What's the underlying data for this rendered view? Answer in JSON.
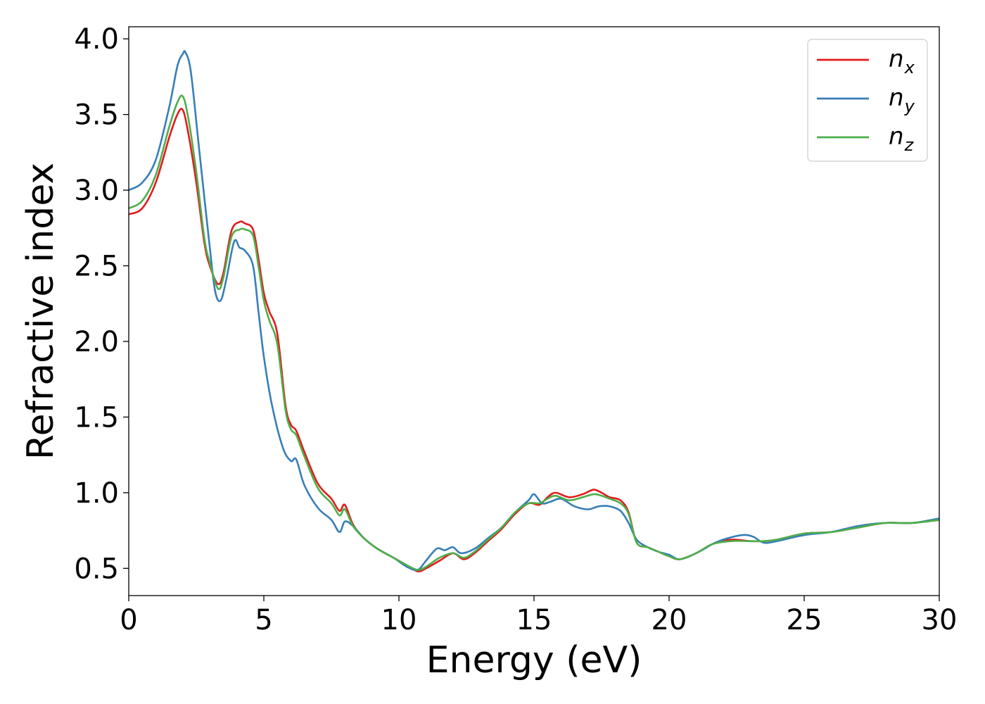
{
  "chart_data": {
    "type": "line",
    "title": "",
    "xlabel": "Energy (eV)",
    "ylabel": "Refractive index",
    "xlim": [
      0,
      30
    ],
    "ylim": [
      0.32,
      4.08
    ],
    "xticks": [
      "0",
      "5",
      "10",
      "15",
      "20",
      "25",
      "30"
    ],
    "yticks": [
      "0.5",
      "1.0",
      "1.5",
      "2.0",
      "2.5",
      "3.0",
      "3.5",
      "4.0"
    ],
    "grid": false,
    "legend_position": "top-right",
    "series": [
      {
        "name": "n_x",
        "label_main": "n",
        "label_sub": "x",
        "color": "#e41a1c",
        "x": [
          0,
          0.5,
          1.0,
          1.5,
          1.8,
          2.0,
          2.2,
          2.5,
          2.8,
          3.0,
          3.3,
          3.5,
          3.8,
          4.1,
          4.3,
          4.6,
          4.8,
          5.0,
          5.2,
          5.5,
          5.8,
          6.0,
          6.2,
          6.5,
          7.0,
          7.5,
          7.8,
          8.0,
          8.3,
          8.7,
          9.2,
          9.8,
          10.3,
          10.7,
          11.0,
          11.5,
          12.0,
          12.4,
          12.8,
          13.3,
          13.8,
          14.3,
          14.8,
          15.2,
          15.5,
          15.8,
          16.3,
          16.8,
          17.2,
          17.5,
          17.8,
          18.2,
          18.5,
          18.8,
          19.2,
          19.6,
          20.0,
          20.4,
          21.0,
          21.6,
          22.3,
          23.0,
          23.5,
          24.0,
          25.0,
          26.0,
          27.0,
          28.0,
          29.0,
          30.0
        ],
        "values": [
          2.84,
          2.88,
          3.05,
          3.35,
          3.5,
          3.53,
          3.38,
          3.05,
          2.65,
          2.5,
          2.38,
          2.45,
          2.73,
          2.79,
          2.78,
          2.74,
          2.55,
          2.32,
          2.2,
          2.05,
          1.58,
          1.45,
          1.41,
          1.27,
          1.06,
          0.96,
          0.88,
          0.92,
          0.79,
          0.7,
          0.63,
          0.57,
          0.52,
          0.48,
          0.5,
          0.55,
          0.6,
          0.56,
          0.6,
          0.68,
          0.76,
          0.86,
          0.93,
          0.92,
          0.97,
          1.0,
          0.97,
          0.99,
          1.02,
          1.0,
          0.97,
          0.95,
          0.87,
          0.67,
          0.64,
          0.61,
          0.58,
          0.56,
          0.6,
          0.66,
          0.69,
          0.68,
          0.68,
          0.69,
          0.73,
          0.74,
          0.77,
          0.8,
          0.8,
          0.82
        ]
      },
      {
        "name": "n_y",
        "label_main": "n",
        "label_sub": "y",
        "color": "#377eb8",
        "x": [
          0,
          0.5,
          1.0,
          1.5,
          1.8,
          2.0,
          2.1,
          2.3,
          2.6,
          3.0,
          3.2,
          3.4,
          3.6,
          3.9,
          4.1,
          4.3,
          4.6,
          4.8,
          5.0,
          5.3,
          5.7,
          6.0,
          6.2,
          6.5,
          7.0,
          7.5,
          7.8,
          8.0,
          8.3,
          8.7,
          9.2,
          9.8,
          10.3,
          10.7,
          11.0,
          11.4,
          11.7,
          12.0,
          12.3,
          12.8,
          13.3,
          13.8,
          14.3,
          14.8,
          15.0,
          15.3,
          15.6,
          16.0,
          16.5,
          17.0,
          17.4,
          17.8,
          18.2,
          18.5,
          18.8,
          19.2,
          19.6,
          20.0,
          20.4,
          21.0,
          21.6,
          22.0,
          22.7,
          23.1,
          23.5,
          24.0,
          25.0,
          26.0,
          27.0,
          28.0,
          29.0,
          30.0
        ],
        "values": [
          3.0,
          3.05,
          3.2,
          3.55,
          3.82,
          3.9,
          3.91,
          3.78,
          3.28,
          2.62,
          2.33,
          2.27,
          2.4,
          2.66,
          2.62,
          2.6,
          2.5,
          2.2,
          1.9,
          1.58,
          1.3,
          1.21,
          1.22,
          1.05,
          0.9,
          0.82,
          0.74,
          0.81,
          0.78,
          0.7,
          0.63,
          0.57,
          0.51,
          0.49,
          0.55,
          0.63,
          0.62,
          0.64,
          0.6,
          0.63,
          0.7,
          0.77,
          0.87,
          0.95,
          0.99,
          0.93,
          0.94,
          0.96,
          0.91,
          0.89,
          0.91,
          0.91,
          0.88,
          0.8,
          0.69,
          0.64,
          0.61,
          0.59,
          0.56,
          0.6,
          0.66,
          0.69,
          0.72,
          0.71,
          0.67,
          0.68,
          0.72,
          0.74,
          0.78,
          0.8,
          0.8,
          0.83
        ]
      },
      {
        "name": "n_z",
        "label_main": "n",
        "label_sub": "z",
        "color": "#4daf4a",
        "x": [
          0,
          0.5,
          1.0,
          1.5,
          1.8,
          2.0,
          2.2,
          2.5,
          2.8,
          3.0,
          3.3,
          3.5,
          3.8,
          4.1,
          4.3,
          4.6,
          4.8,
          5.0,
          5.2,
          5.5,
          5.8,
          6.0,
          6.2,
          6.5,
          7.0,
          7.5,
          7.8,
          8.0,
          8.3,
          8.7,
          9.2,
          9.8,
          10.3,
          10.7,
          11.0,
          11.5,
          12.0,
          12.4,
          12.8,
          13.3,
          13.8,
          14.3,
          14.8,
          15.2,
          15.5,
          15.8,
          16.3,
          16.8,
          17.2,
          17.5,
          17.8,
          18.2,
          18.5,
          18.8,
          19.2,
          19.6,
          20.0,
          20.4,
          21.0,
          21.6,
          22.3,
          23.0,
          23.5,
          24.0,
          25.0,
          26.0,
          27.0,
          28.0,
          29.0,
          30.0
        ],
        "values": [
          2.88,
          2.93,
          3.1,
          3.42,
          3.58,
          3.62,
          3.48,
          3.12,
          2.68,
          2.52,
          2.35,
          2.42,
          2.69,
          2.74,
          2.74,
          2.7,
          2.5,
          2.27,
          2.14,
          1.98,
          1.55,
          1.42,
          1.38,
          1.24,
          1.03,
          0.93,
          0.85,
          0.89,
          0.78,
          0.7,
          0.63,
          0.57,
          0.52,
          0.49,
          0.51,
          0.57,
          0.6,
          0.57,
          0.61,
          0.69,
          0.77,
          0.87,
          0.93,
          0.93,
          0.96,
          0.98,
          0.95,
          0.97,
          0.99,
          0.98,
          0.96,
          0.93,
          0.86,
          0.67,
          0.64,
          0.61,
          0.58,
          0.56,
          0.6,
          0.66,
          0.68,
          0.68,
          0.68,
          0.69,
          0.73,
          0.74,
          0.77,
          0.8,
          0.8,
          0.82
        ]
      }
    ]
  }
}
